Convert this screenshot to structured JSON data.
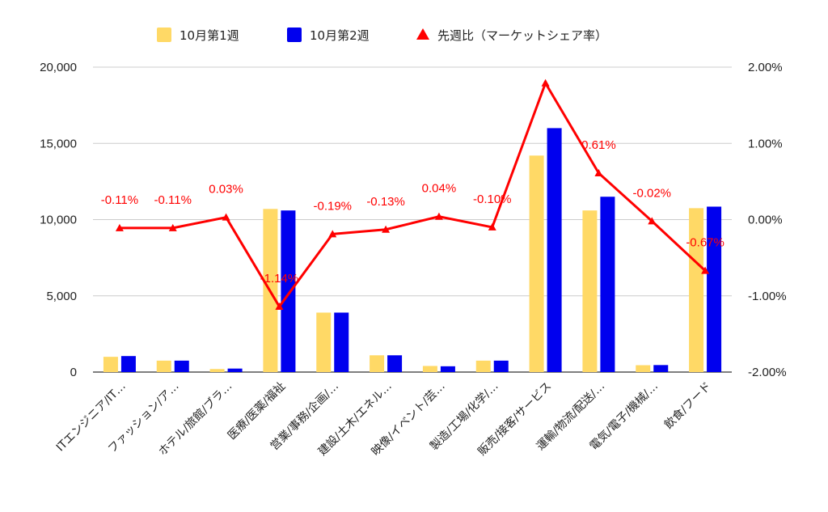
{
  "chart_data": {
    "type": "bar",
    "categories": [
      "ITエンジニア/IT…",
      "ファッション/ア…",
      "ホテル/旅館/ブラ…",
      "医療/医薬/福祉",
      "営業/事務/企画/…",
      "建設/土木/エネル…",
      "映像/イベント/芸…",
      "製造/工場/化学/…",
      "販売/接客/サービス",
      "運輸/物流/配送/…",
      "電気/電子/機械/…",
      "飲食/フード"
    ],
    "series": [
      {
        "name": "10月第1週",
        "type": "bar",
        "axis": "left",
        "color": "#ffd966",
        "values": [
          1000,
          750,
          200,
          10700,
          3900,
          1100,
          400,
          750,
          14200,
          10600,
          450,
          10750
        ]
      },
      {
        "name": "10月第2週",
        "type": "bar",
        "axis": "left",
        "color": "#0000ee",
        "values": [
          1050,
          750,
          230,
          10600,
          3900,
          1100,
          380,
          750,
          16000,
          11500,
          460,
          10850
        ]
      },
      {
        "name": "先週比（マーケットシェア率）",
        "type": "line",
        "axis": "right",
        "color": "#ff0000",
        "values": [
          -0.11,
          -0.11,
          0.03,
          -1.14,
          -0.19,
          -0.13,
          0.04,
          -0.1,
          1.79,
          0.61,
          -0.02,
          -0.67
        ],
        "labels": [
          "-0.11%",
          "-0.11%",
          "0.03%",
          "-1.14%",
          "-0.19%",
          "-0.13%",
          "0.04%",
          "-0.10%",
          "",
          "0.61%",
          "-0.02%",
          "-0.67%"
        ]
      }
    ],
    "left_axis": {
      "ylim": [
        0,
        20000
      ],
      "ticks": [
        0,
        5000,
        10000,
        15000,
        20000
      ],
      "tick_labels": [
        "0",
        "5,000",
        "10,000",
        "15,000",
        "20,000"
      ]
    },
    "right_axis": {
      "ylim": [
        -2,
        2
      ],
      "ticks": [
        -2,
        -1,
        0,
        1,
        2
      ],
      "tick_labels": [
        "-2.00%",
        "-1.00%",
        "0.00%",
        "1.00%",
        "2.00%"
      ]
    },
    "grid": true,
    "legend_position": "top-center"
  }
}
